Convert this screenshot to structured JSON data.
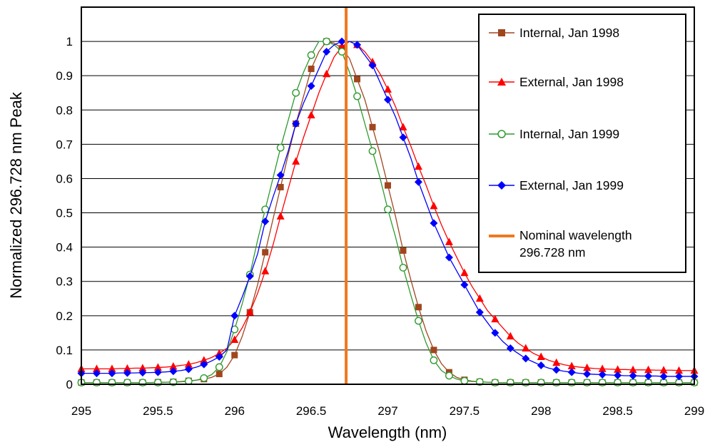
{
  "chart_data": {
    "type": "line",
    "title": "",
    "xlabel": "Wavelength (nm)",
    "ylabel": "Normalized 296.728 nm Peak",
    "xlim": [
      295,
      299
    ],
    "ylim": [
      0,
      1.1
    ],
    "xticks": [
      "295",
      "295.5",
      "296",
      "296.5",
      "297",
      "297.5",
      "298",
      "298.5",
      "299"
    ],
    "yticks": [
      "0",
      "0.1",
      "0.2",
      "0.3",
      "0.4",
      "0.5",
      "0.6",
      "0.7",
      "0.8",
      "0.9",
      "1"
    ],
    "grid": "horizontal",
    "legend_position": "top-right",
    "nominal_wavelength": 296.728,
    "series": [
      {
        "name": "Internal, Jan 1998",
        "color": "#a0461e",
        "marker": "square",
        "x": [
          295.0,
          295.05,
          295.1,
          295.15,
          295.2,
          295.25,
          295.3,
          295.35,
          295.4,
          295.45,
          295.5,
          295.55,
          295.6,
          295.65,
          295.7,
          295.75,
          295.8,
          295.85,
          295.9,
          295.95,
          296.0,
          296.05,
          296.1,
          296.15,
          296.2,
          296.25,
          296.3,
          296.35,
          296.4,
          296.45,
          296.5,
          296.55,
          296.6,
          296.65,
          296.7,
          296.75,
          296.8,
          296.85,
          296.9,
          296.95,
          297.0,
          297.05,
          297.1,
          297.15,
          297.2,
          297.25,
          297.3,
          297.35,
          297.4,
          297.45,
          297.5,
          297.55,
          297.6,
          297.65,
          297.7,
          297.75,
          297.8,
          297.85,
          297.9,
          297.95,
          298.0,
          298.05,
          298.1,
          298.15,
          298.2,
          298.25,
          298.3,
          298.35,
          298.4,
          298.45,
          298.5,
          298.55,
          298.6,
          298.65,
          298.7,
          298.75,
          298.8,
          298.85,
          298.9,
          298.95,
          299.0
        ],
        "y": [
          0.005,
          0.005,
          0.005,
          0.005,
          0.005,
          0.005,
          0.005,
          0.005,
          0.005,
          0.005,
          0.006,
          0.006,
          0.007,
          0.008,
          0.01,
          0.012,
          0.015,
          0.02,
          0.03,
          0.05,
          0.085,
          0.14,
          0.21,
          0.29,
          0.385,
          0.48,
          0.575,
          0.67,
          0.76,
          0.84,
          0.92,
          0.97,
          1.0,
          0.995,
          0.98,
          0.95,
          0.89,
          0.83,
          0.75,
          0.67,
          0.58,
          0.49,
          0.39,
          0.305,
          0.225,
          0.155,
          0.1,
          0.06,
          0.035,
          0.02,
          0.013,
          0.009,
          0.007,
          0.006,
          0.005,
          0.005,
          0.005,
          0.005,
          0.005,
          0.005,
          0.005,
          0.005,
          0.005,
          0.005,
          0.005,
          0.005,
          0.005,
          0.005,
          0.005,
          0.005,
          0.005,
          0.005,
          0.005,
          0.005,
          0.005,
          0.005,
          0.005,
          0.005,
          0.005,
          0.005,
          0.005
        ]
      },
      {
        "name": "External, Jan 1998",
        "color": "#ff0000",
        "marker": "triangle",
        "x": [
          295.0,
          295.05,
          295.1,
          295.15,
          295.2,
          295.25,
          295.3,
          295.35,
          295.4,
          295.45,
          295.5,
          295.55,
          295.6,
          295.65,
          295.7,
          295.75,
          295.8,
          295.85,
          295.9,
          295.95,
          296.0,
          296.05,
          296.1,
          296.15,
          296.2,
          296.25,
          296.3,
          296.35,
          296.4,
          296.45,
          296.5,
          296.55,
          296.6,
          296.65,
          296.7,
          296.75,
          296.8,
          296.85,
          296.9,
          296.95,
          297.0,
          297.05,
          297.1,
          297.15,
          297.2,
          297.25,
          297.3,
          297.35,
          297.4,
          297.45,
          297.5,
          297.55,
          297.6,
          297.65,
          297.7,
          297.75,
          297.8,
          297.85,
          297.9,
          297.95,
          298.0,
          298.05,
          298.1,
          298.15,
          298.2,
          298.25,
          298.3,
          298.35,
          298.4,
          298.45,
          298.5,
          298.55,
          298.6,
          298.65,
          298.7,
          298.75,
          298.8,
          298.85,
          298.9,
          298.95,
          299.0
        ],
        "y": [
          0.045,
          0.045,
          0.045,
          0.045,
          0.045,
          0.046,
          0.046,
          0.047,
          0.047,
          0.048,
          0.049,
          0.05,
          0.052,
          0.055,
          0.058,
          0.063,
          0.07,
          0.078,
          0.09,
          0.105,
          0.13,
          0.165,
          0.21,
          0.265,
          0.33,
          0.405,
          0.49,
          0.57,
          0.65,
          0.72,
          0.785,
          0.85,
          0.905,
          0.955,
          0.985,
          1.0,
          0.99,
          0.97,
          0.94,
          0.905,
          0.86,
          0.81,
          0.75,
          0.695,
          0.635,
          0.58,
          0.52,
          0.465,
          0.415,
          0.37,
          0.325,
          0.285,
          0.25,
          0.215,
          0.19,
          0.165,
          0.14,
          0.12,
          0.105,
          0.09,
          0.08,
          0.07,
          0.063,
          0.057,
          0.053,
          0.05,
          0.048,
          0.046,
          0.045,
          0.044,
          0.043,
          0.043,
          0.042,
          0.042,
          0.042,
          0.041,
          0.041,
          0.041,
          0.04,
          0.04,
          0.04
        ]
      },
      {
        "name": "Internal, Jan 1999",
        "color": "#2e9a2e",
        "marker": "circle-open",
        "x": [
          295.0,
          295.05,
          295.1,
          295.15,
          295.2,
          295.25,
          295.3,
          295.35,
          295.4,
          295.45,
          295.5,
          295.55,
          295.6,
          295.65,
          295.7,
          295.75,
          295.8,
          295.85,
          295.9,
          295.95,
          296.0,
          296.05,
          296.1,
          296.15,
          296.2,
          296.25,
          296.3,
          296.35,
          296.4,
          296.45,
          296.5,
          296.55,
          296.6,
          296.65,
          296.7,
          296.75,
          296.8,
          296.85,
          296.9,
          296.95,
          297.0,
          297.05,
          297.1,
          297.15,
          297.2,
          297.25,
          297.3,
          297.35,
          297.4,
          297.45,
          297.5,
          297.55,
          297.6,
          297.65,
          297.7,
          297.75,
          297.8,
          297.85,
          297.9,
          297.95,
          298.0,
          298.05,
          298.1,
          298.15,
          298.2,
          298.25,
          298.3,
          298.35,
          298.4,
          298.45,
          298.5,
          298.55,
          298.6,
          298.65,
          298.7,
          298.75,
          298.8,
          298.85,
          298.9,
          298.95,
          299.0
        ],
        "y": [
          0.005,
          0.005,
          0.005,
          0.005,
          0.005,
          0.005,
          0.005,
          0.005,
          0.005,
          0.005,
          0.005,
          0.006,
          0.006,
          0.007,
          0.009,
          0.012,
          0.018,
          0.028,
          0.05,
          0.095,
          0.16,
          0.235,
          0.32,
          0.42,
          0.51,
          0.6,
          0.69,
          0.77,
          0.85,
          0.91,
          0.96,
          1.0,
          1.0,
          0.99,
          0.97,
          0.91,
          0.84,
          0.76,
          0.68,
          0.6,
          0.51,
          0.43,
          0.34,
          0.26,
          0.185,
          0.12,
          0.07,
          0.04,
          0.025,
          0.015,
          0.01,
          0.008,
          0.007,
          0.006,
          0.005,
          0.005,
          0.005,
          0.005,
          0.005,
          0.005,
          0.005,
          0.005,
          0.005,
          0.005,
          0.005,
          0.005,
          0.005,
          0.005,
          0.005,
          0.005,
          0.005,
          0.005,
          0.005,
          0.005,
          0.005,
          0.005,
          0.005,
          0.005,
          0.005,
          0.005,
          0.005
        ]
      },
      {
        "name": "External, Jan 1999",
        "color": "#0000ff",
        "marker": "diamond",
        "x": [
          295.0,
          295.05,
          295.1,
          295.15,
          295.2,
          295.25,
          295.3,
          295.35,
          295.4,
          295.45,
          295.5,
          295.55,
          295.6,
          295.65,
          295.7,
          295.75,
          295.8,
          295.85,
          295.9,
          295.95,
          296.0,
          296.05,
          296.1,
          296.15,
          296.2,
          296.25,
          296.3,
          296.35,
          296.4,
          296.45,
          296.5,
          296.55,
          296.6,
          296.65,
          296.7,
          296.75,
          296.8,
          296.85,
          296.9,
          296.95,
          297.0,
          297.05,
          297.1,
          297.15,
          297.2,
          297.25,
          297.3,
          297.35,
          297.4,
          297.45,
          297.5,
          297.55,
          297.6,
          297.65,
          297.7,
          297.75,
          297.8,
          297.85,
          297.9,
          297.95,
          298.0,
          298.05,
          298.1,
          298.15,
          298.2,
          298.25,
          298.3,
          298.35,
          298.4,
          298.45,
          298.5,
          298.55,
          298.6,
          298.65,
          298.7,
          298.75,
          298.8,
          298.85,
          298.9,
          298.95,
          299.0
        ],
        "y": [
          0.032,
          0.032,
          0.032,
          0.032,
          0.032,
          0.033,
          0.033,
          0.033,
          0.034,
          0.034,
          0.035,
          0.036,
          0.038,
          0.04,
          0.044,
          0.05,
          0.058,
          0.068,
          0.08,
          0.1,
          0.2,
          0.255,
          0.315,
          0.38,
          0.475,
          0.545,
          0.61,
          0.68,
          0.76,
          0.82,
          0.87,
          0.92,
          0.97,
          0.99,
          1.0,
          1.0,
          0.99,
          0.96,
          0.93,
          0.88,
          0.83,
          0.78,
          0.72,
          0.66,
          0.59,
          0.53,
          0.47,
          0.42,
          0.37,
          0.33,
          0.29,
          0.25,
          0.21,
          0.18,
          0.15,
          0.125,
          0.105,
          0.09,
          0.075,
          0.065,
          0.055,
          0.047,
          0.042,
          0.038,
          0.035,
          0.032,
          0.03,
          0.029,
          0.028,
          0.027,
          0.026,
          0.025,
          0.025,
          0.024,
          0.024,
          0.024,
          0.023,
          0.023,
          0.023,
          0.023,
          0.023
        ]
      },
      {
        "name": "Nominal wavelength 296.728 nm",
        "color": "#f07820",
        "marker": "none",
        "x": [
          296.728,
          296.728
        ],
        "y": [
          0,
          1.1
        ]
      }
    ]
  },
  "legend": {
    "entries": [
      {
        "label": "Internal, Jan 1998"
      },
      {
        "label": "External, Jan 1998"
      },
      {
        "label": "Internal, Jan 1999"
      },
      {
        "label": "External, Jan 1999"
      },
      {
        "label_line1": "Nominal wavelength",
        "label_line2": "296.728 nm"
      }
    ]
  }
}
